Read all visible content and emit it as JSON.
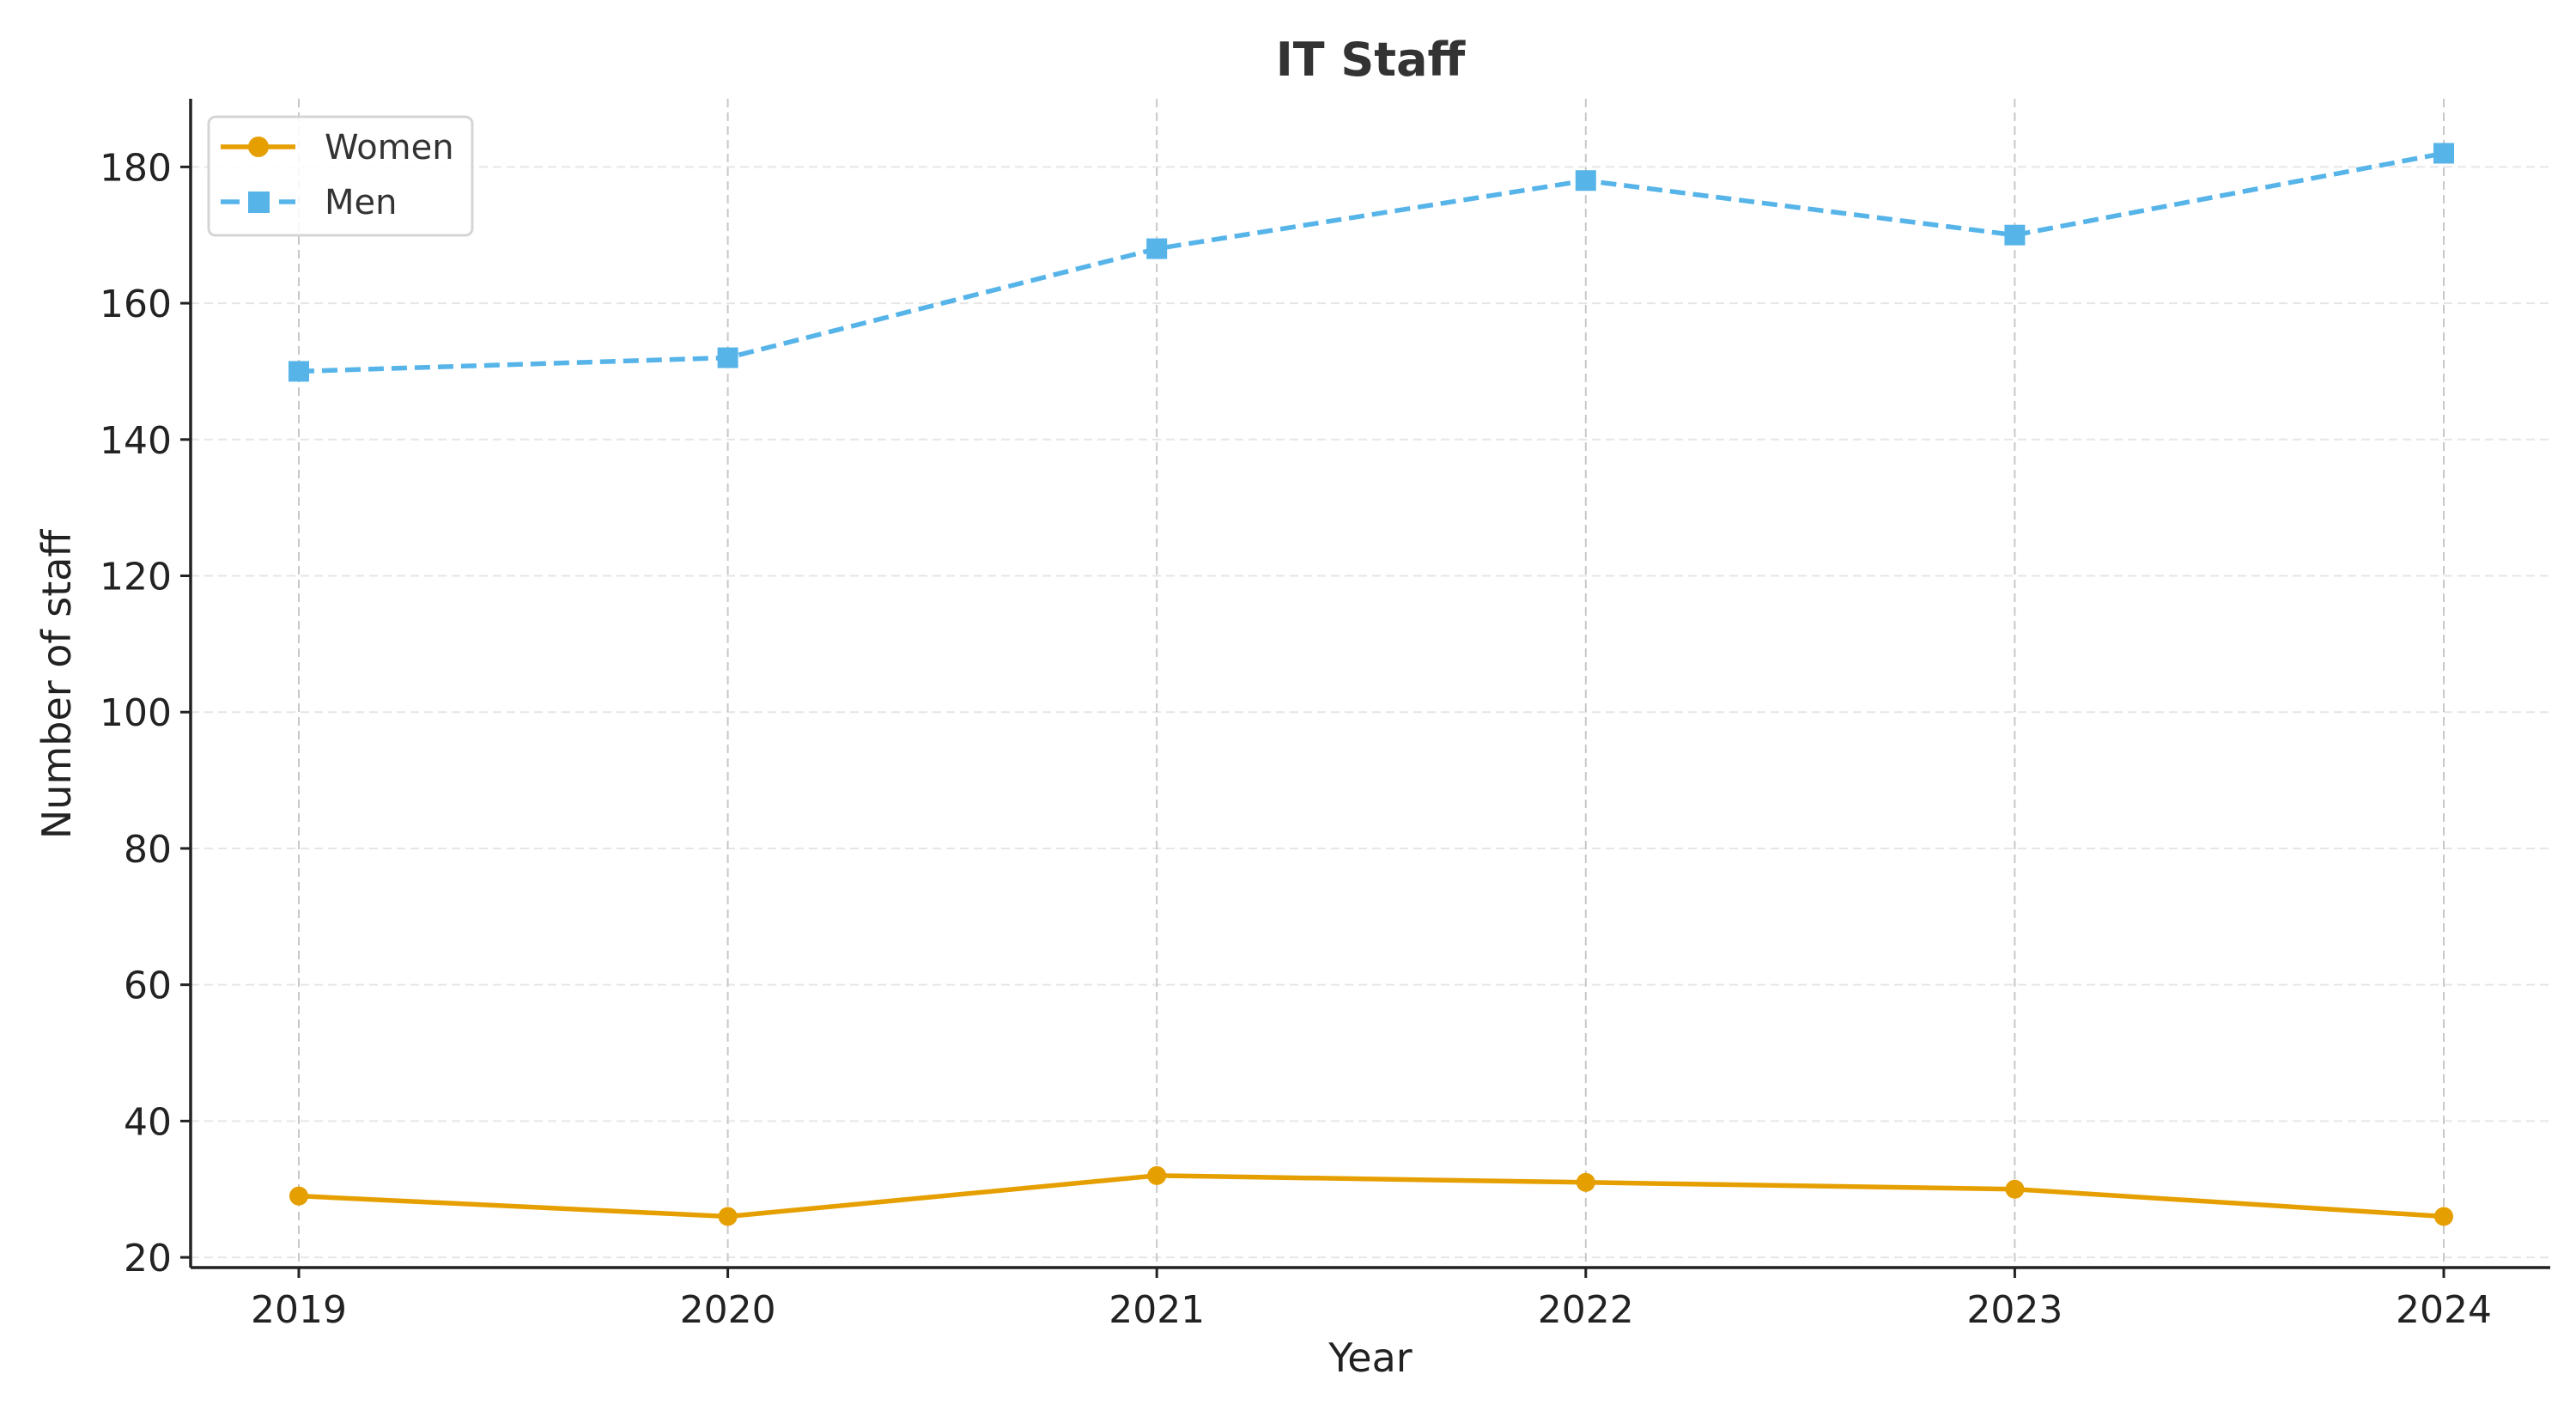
{
  "chart_data": {
    "type": "line",
    "title": "IT Staff",
    "xlabel": "Year",
    "ylabel": "Number of staff",
    "categories": [
      "2019",
      "2020",
      "2021",
      "2022",
      "2023",
      "2024"
    ],
    "series": [
      {
        "name": "Women",
        "values": [
          29,
          26,
          32,
          31,
          30,
          26
        ],
        "color": "#E69F00",
        "style": "solid",
        "marker": "circle"
      },
      {
        "name": "Men",
        "values": [
          150,
          152,
          168,
          178,
          170,
          182
        ],
        "color": "#56B4E9",
        "style": "dashed",
        "marker": "square"
      }
    ],
    "yticks": [
      20,
      40,
      60,
      80,
      100,
      120,
      140,
      160,
      180
    ],
    "ylim": [
      18.5,
      190
    ],
    "grid": true,
    "legend": "top-left"
  }
}
